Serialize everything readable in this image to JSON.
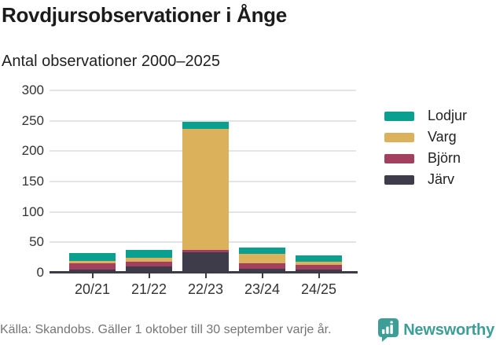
{
  "header": {
    "title": "Rovdjursobservationer i Ånge",
    "subtitle": "Antal observationer 2000–2025"
  },
  "chart_data": {
    "type": "bar",
    "stacked": true,
    "title": "Rovdjursobservationer i Ånge",
    "subtitle": "Antal observationer 2000–2025",
    "categories": [
      "20/21",
      "21/22",
      "22/23",
      "23/24",
      "24/25"
    ],
    "series": [
      {
        "name": "Järv",
        "color": "#3e3c4b",
        "values": [
          5,
          11,
          33,
          7,
          5
        ]
      },
      {
        "name": "Björn",
        "color": "#a33f5f",
        "values": [
          10,
          7,
          5,
          8,
          8
        ]
      },
      {
        "name": "Varg",
        "color": "#dcb15c",
        "values": [
          5,
          6,
          199,
          16,
          5
        ]
      },
      {
        "name": "Lodjur",
        "color": "#0a9f8e",
        "values": [
          13,
          14,
          11,
          10,
          11
        ]
      }
    ],
    "totals": [
      33,
      38,
      248,
      41,
      29
    ],
    "legend_order": [
      "Lodjur",
      "Varg",
      "Björn",
      "Järv"
    ],
    "legend_position": "right",
    "xlabel": "",
    "ylabel": "",
    "ylim": [
      0,
      300
    ],
    "yticks": [
      0,
      50,
      100,
      150,
      200,
      250,
      300
    ],
    "grid": true
  },
  "footer": {
    "source": "Källa: Skandobs. Gäller 1 oktober till 30 september varje år.",
    "brand": "Newsworthy"
  },
  "colors": {
    "axis": "#3b3a45",
    "gridline": "#e4e4e4",
    "tick_label": "#333333",
    "title_text": "#1b1b1b",
    "source_text": "#757575",
    "brand_teal": "#3c9e97"
  },
  "icons": {
    "newsworthy_logo": "speech-bubble-bar-chart-icon"
  }
}
